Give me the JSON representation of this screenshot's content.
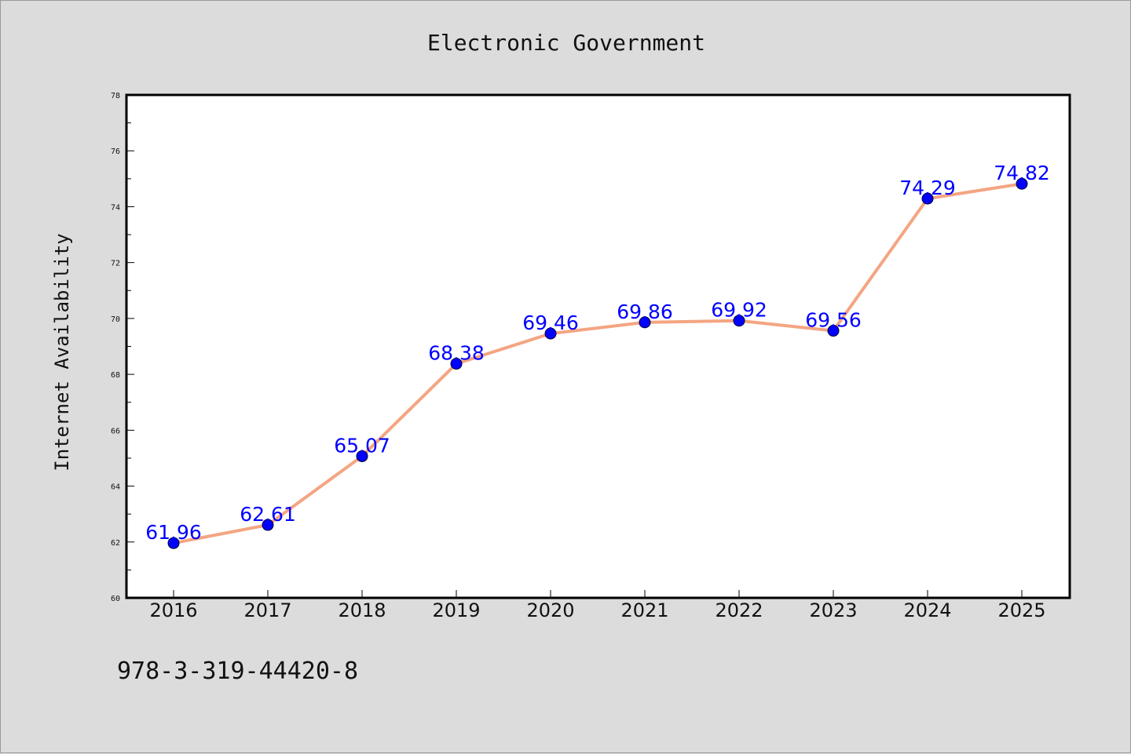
{
  "chart_data": {
    "type": "line",
    "title": "Electronic Government",
    "xlabel": "",
    "ylabel": "Internet Availability",
    "x": [
      "2016",
      "2017",
      "2018",
      "2019",
      "2020",
      "2021",
      "2022",
      "2023",
      "2024",
      "2025"
    ],
    "series": [
      {
        "values": [
          61.96,
          62.61,
          65.07,
          68.38,
          69.46,
          69.86,
          69.92,
          69.56,
          74.29,
          74.82
        ],
        "labels": [
          "61.96",
          "62.61",
          "65.07",
          "68.38",
          "69.46",
          "69.86",
          "69.92",
          "69.56",
          "74.29",
          "74.82"
        ],
        "line_color": "#f4a582",
        "marker_color": "#0000ff"
      }
    ],
    "ylim": [
      60,
      78
    ],
    "yticks": [
      "60",
      "62",
      "64",
      "66",
      "68",
      "70",
      "72",
      "74",
      "76",
      "78"
    ],
    "grid": false,
    "legend": "none"
  },
  "footer": {
    "isbn": "978-3-319-44420-8"
  },
  "colors": {
    "background": "#dcdcdc",
    "plot_background": "#ffffff",
    "line": "#f4a582",
    "marker": "#0000ff",
    "data_label": "#0000ff"
  }
}
